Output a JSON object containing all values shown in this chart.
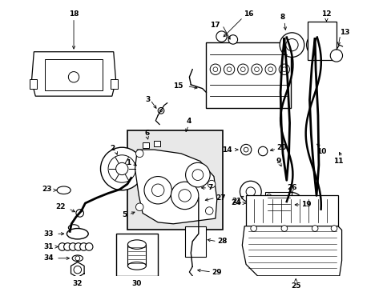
{
  "background_color": "#ffffff",
  "figure_width": 4.89,
  "figure_height": 3.6,
  "dpi": 100,
  "line_color": "#000000",
  "label_fontsize": 6.5,
  "label_fontweight": "bold",
  "gray_fill": "#e8e8e8",
  "light_gray": "#d0d0d0"
}
